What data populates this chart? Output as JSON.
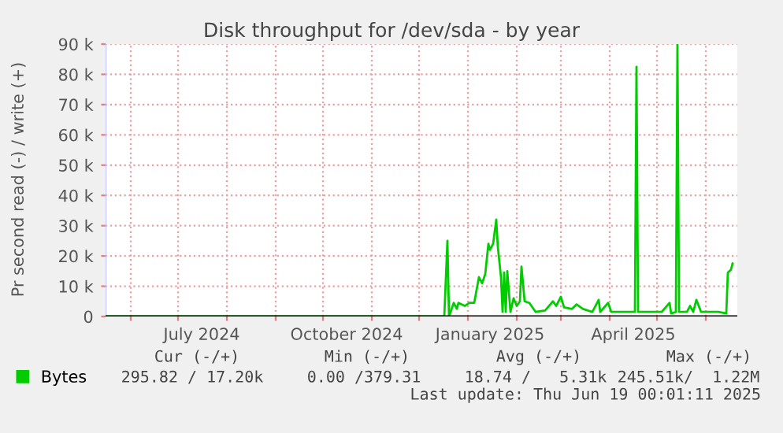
{
  "chart_data": {
    "type": "line",
    "title": "Disk throughput for /dev/sda - by year",
    "ylabel": "Pr second read (-) / write (+)",
    "x": [
      "2024-05-16",
      "2024-12-17",
      "2024-12-19",
      "2024-12-20",
      "2024-12-23",
      "2024-12-25",
      "2024-12-26",
      "2024-12-30",
      "2025-01-02",
      "2025-01-05",
      "2025-01-08",
      "2025-01-10",
      "2025-01-12",
      "2025-01-14",
      "2025-01-15",
      "2025-01-17",
      "2025-01-19",
      "2025-01-20",
      "2025-01-22",
      "2025-01-23",
      "2025-01-24",
      "2025-01-25",
      "2025-01-26",
      "2025-01-28",
      "2025-01-30",
      "2025-02-01",
      "2025-02-03",
      "2025-02-04",
      "2025-02-06",
      "2025-02-09",
      "2025-02-13",
      "2025-02-19",
      "2025-02-24",
      "2025-02-26",
      "2025-03-01",
      "2025-03-03",
      "2025-03-08",
      "2025-03-11",
      "2025-03-15",
      "2025-03-21",
      "2025-03-25",
      "2025-03-26",
      "2025-03-31",
      "2025-04-02",
      "2025-04-14",
      "2025-04-17",
      "2025-04-18",
      "2025-04-19",
      "2025-05-04",
      "2025-05-09",
      "2025-05-10",
      "2025-05-13",
      "2025-05-14",
      "2025-05-15",
      "2025-05-20",
      "2025-05-22",
      "2025-05-24",
      "2025-05-26",
      "2025-05-29",
      "2025-06-09",
      "2025-06-14",
      "2025-06-15",
      "2025-06-17",
      "2025-06-18"
    ],
    "series": [
      {
        "name": "Bytes",
        "color": "#00cc00",
        "values": [
          0,
          0,
          25000,
          0,
          4500,
          2500,
          4500,
          3500,
          4500,
          4500,
          13000,
          11000,
          14000,
          24000,
          22000,
          24000,
          32000,
          23000,
          13000,
          1500,
          14500,
          1500,
          15000,
          1500,
          6000,
          3500,
          5000,
          16500,
          5000,
          4500,
          1500,
          2000,
          5000,
          3500,
          6500,
          3000,
          2500,
          4000,
          2500,
          1500,
          5500,
          1500,
          4500,
          1500,
          1500,
          1500,
          82500,
          1500,
          1500,
          4500,
          1000,
          1500,
          90000,
          1500,
          1500,
          3500,
          1500,
          5500,
          1500,
          1500,
          1000,
          14500,
          15500,
          17500
        ]
      }
    ],
    "xlim": [
      "2024-05-16",
      "2025-06-21"
    ],
    "xticks": [
      {
        "value": "2024-06-01",
        "label": null
      },
      {
        "value": "2024-07-01",
        "label": null
      },
      {
        "value": "2024-08-01",
        "label": null
      },
      {
        "value": "2024-09-01",
        "label": null
      },
      {
        "value": "2024-10-01",
        "label": null
      },
      {
        "value": "2024-11-01",
        "label": null
      },
      {
        "value": "2024-12-01",
        "label": null
      },
      {
        "value": "2025-01-01",
        "label": null
      },
      {
        "value": "2025-02-01",
        "label": null
      },
      {
        "value": "2025-03-01",
        "label": null
      },
      {
        "value": "2025-04-01",
        "label": null
      },
      {
        "value": "2025-05-01",
        "label": null
      },
      {
        "value": "2025-06-01",
        "label": null
      },
      {
        "value": "2024-07-16",
        "label": "July 2024"
      },
      {
        "value": "2024-10-16",
        "label": "October 2024"
      },
      {
        "value": "2025-01-15",
        "label": "January 2025"
      },
      {
        "value": "2025-04-16",
        "label": "April 2025"
      }
    ],
    "ylim": [
      0,
      90000
    ],
    "yticks": [
      {
        "value": 0,
        "label": "0"
      },
      {
        "value": 10000,
        "label": "10 k"
      },
      {
        "value": 20000,
        "label": "20 k"
      },
      {
        "value": 30000,
        "label": "30 k"
      },
      {
        "value": 40000,
        "label": "40 k"
      },
      {
        "value": 50000,
        "label": "50 k"
      },
      {
        "value": 60000,
        "label": "60 k"
      },
      {
        "value": 70000,
        "label": "70 k"
      },
      {
        "value": 80000,
        "label": "80 k"
      },
      {
        "value": 90000,
        "label": "90 k"
      }
    ],
    "grid": true,
    "legend": "bottom",
    "marker": "none",
    "line_style": "solid",
    "annotations": [
      "Cur (-/+)",
      "Min (-/+)",
      "Avg (-/+)",
      "Max (-/+)",
      "295.82 / 17.20k",
      "0.00 /379.31",
      "18.74 /   5.31k",
      "245.51k/  1.22M",
      "Last update: Thu Jun 19 00:01:11 2025"
    ]
  }
}
